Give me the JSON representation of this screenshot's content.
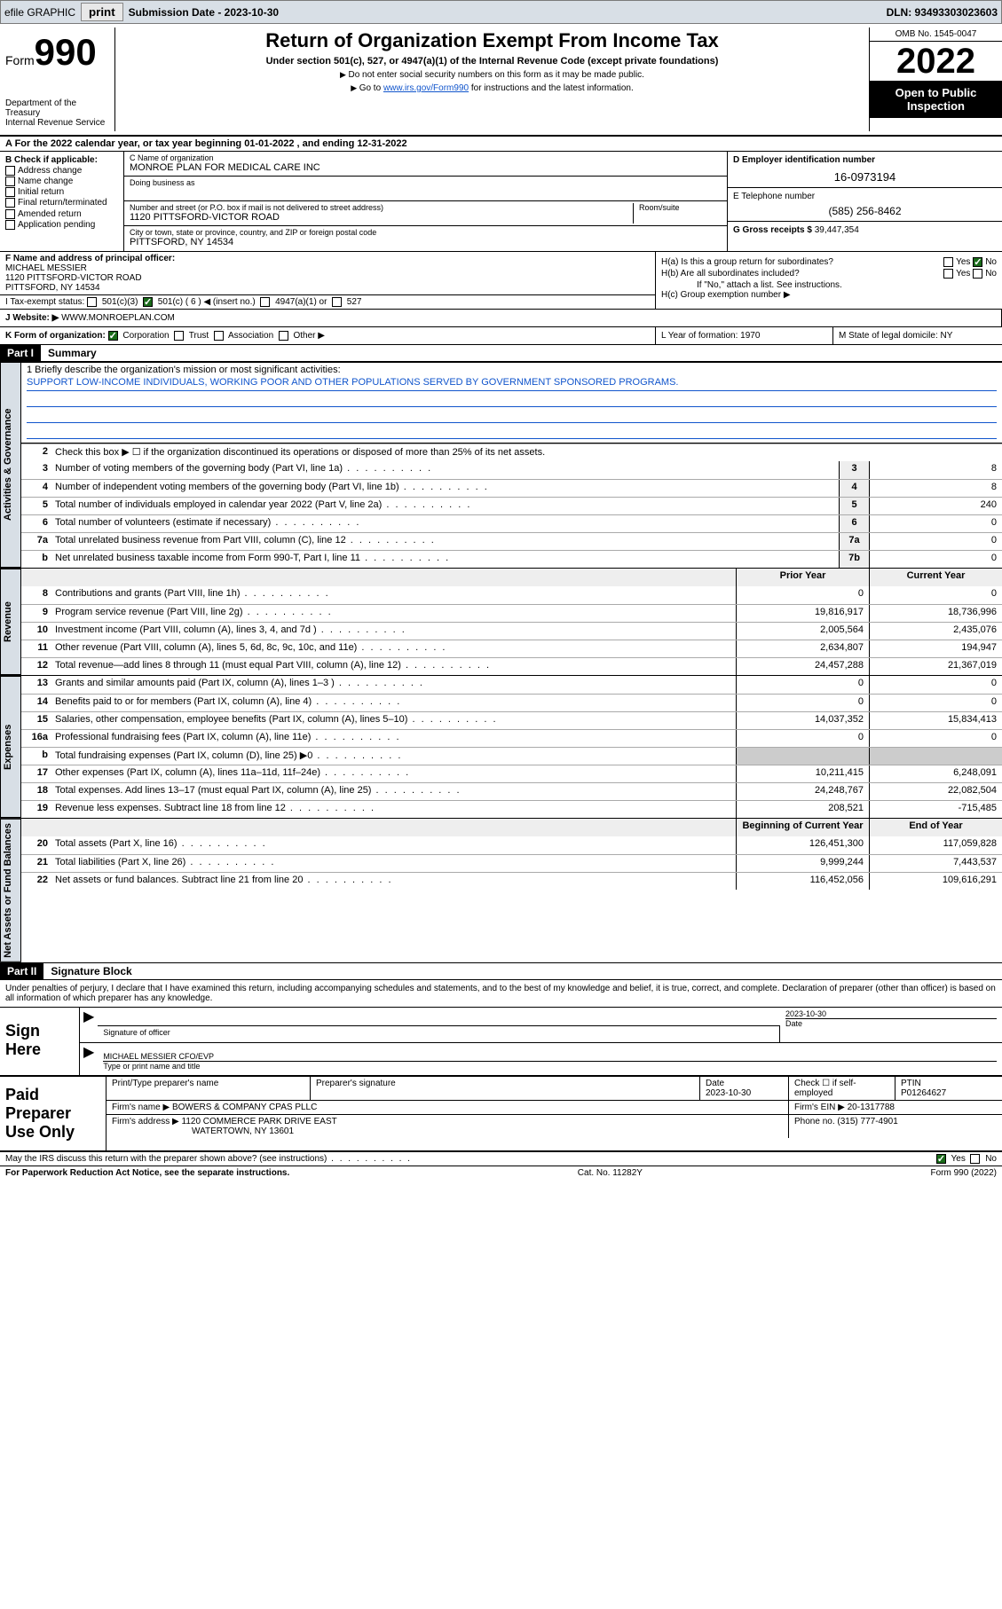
{
  "topbar": {
    "efile_label": "efile GRAPHIC",
    "print_btn": "print",
    "submission_label": "Submission Date - 2023-10-30",
    "dln_label": "DLN: 93493303023603"
  },
  "header": {
    "form_word": "Form",
    "form_num": "990",
    "dept": "Department of the Treasury",
    "irs": "Internal Revenue Service",
    "title": "Return of Organization Exempt From Income Tax",
    "subtitle": "Under section 501(c), 527, or 4947(a)(1) of the Internal Revenue Code (except private foundations)",
    "note1": "Do not enter social security numbers on this form as it may be made public.",
    "note2_pre": "Go to ",
    "note2_link": "www.irs.gov/Form990",
    "note2_post": " for instructions and the latest information.",
    "omb": "OMB No. 1545-0047",
    "year": "2022",
    "inspect": "Open to Public Inspection"
  },
  "row_a": "A For the 2022 calendar year, or tax year beginning 01-01-2022    , and ending 12-31-2022",
  "box_b": {
    "label": "B Check if applicable:",
    "opts": [
      "Address change",
      "Name change",
      "Initial return",
      "Final return/terminated",
      "Amended return",
      "Application pending"
    ]
  },
  "box_c": {
    "name_label": "C Name of organization",
    "name": "MONROE PLAN FOR MEDICAL CARE INC",
    "dba_label": "Doing business as",
    "dba": "",
    "addr_label": "Number and street (or P.O. box if mail is not delivered to street address)",
    "room_label": "Room/suite",
    "addr": "1120 PITTSFORD-VICTOR ROAD",
    "city_label": "City or town, state or province, country, and ZIP or foreign postal code",
    "city": "PITTSFORD, NY  14534"
  },
  "box_d": {
    "ein_label": "D Employer identification number",
    "ein": "16-0973194",
    "phone_label": "E Telephone number",
    "phone": "(585) 256-8462",
    "gross_label": "G Gross receipts $",
    "gross": "39,447,354"
  },
  "box_f": {
    "label": "F Name and address of principal officer:",
    "name": "MICHAEL MESSIER",
    "addr1": "1120 PITTSFORD-VICTOR ROAD",
    "addr2": "PITTSFORD, NY  14534"
  },
  "box_i": {
    "label": "I   Tax-exempt status:",
    "c3": "501(c)(3)",
    "c": "501(c) ( 6 ) ◀ (insert no.)",
    "a1": "4947(a)(1) or",
    "s527": "527"
  },
  "box_h": {
    "ha": "H(a)  Is this a group return for subordinates?",
    "hb": "H(b)  Are all subordinates included?",
    "hb_note": "If \"No,\" attach a list. See instructions.",
    "hc": "H(c)  Group exemption number ▶",
    "yes": "Yes",
    "no": "No"
  },
  "row_j": {
    "label": "J   Website: ▶",
    "val": "WWW.MONROEPLAN.COM"
  },
  "row_k": {
    "label": "K Form of organization:",
    "corp": "Corporation",
    "trust": "Trust",
    "assoc": "Association",
    "other": "Other ▶"
  },
  "row_lm": {
    "l_label": "L Year of formation: ",
    "l_val": "1970",
    "m_label": "M State of legal domicile: ",
    "m_val": "NY"
  },
  "part1": {
    "hdr": "Part I",
    "title": "Summary",
    "tab_ag": "Activities & Governance",
    "tab_rev": "Revenue",
    "tab_exp": "Expenses",
    "tab_net": "Net Assets or Fund Balances",
    "l1_label": "1  Briefly describe the organization's mission or most significant activities:",
    "l1_val": "SUPPORT LOW-INCOME INDIVIDUALS, WORKING POOR AND OTHER POPULATIONS SERVED BY GOVERNMENT SPONSORED PROGRAMS.",
    "l2": "Check this box ▶ ☐  if the organization discontinued its operations or disposed of more than 25% of its net assets.",
    "hdr_prior": "Prior Year",
    "hdr_current": "Current Year",
    "hdr_begin": "Beginning of Current Year",
    "hdr_end": "End of Year",
    "lines_ag": [
      {
        "n": "3",
        "d": "Number of voting members of the governing body (Part VI, line 1a)",
        "box": "3",
        "v": "8"
      },
      {
        "n": "4",
        "d": "Number of independent voting members of the governing body (Part VI, line 1b)",
        "box": "4",
        "v": "8"
      },
      {
        "n": "5",
        "d": "Total number of individuals employed in calendar year 2022 (Part V, line 2a)",
        "box": "5",
        "v": "240"
      },
      {
        "n": "6",
        "d": "Total number of volunteers (estimate if necessary)",
        "box": "6",
        "v": "0"
      },
      {
        "n": "7a",
        "d": "Total unrelated business revenue from Part VIII, column (C), line 12",
        "box": "7a",
        "v": "0"
      },
      {
        "n": "b",
        "d": "Net unrelated business taxable income from Form 990-T, Part I, line 11",
        "box": "7b",
        "v": "0"
      }
    ],
    "lines_rev": [
      {
        "n": "8",
        "d": "Contributions and grants (Part VIII, line 1h)",
        "p": "0",
        "c": "0"
      },
      {
        "n": "9",
        "d": "Program service revenue (Part VIII, line 2g)",
        "p": "19,816,917",
        "c": "18,736,996"
      },
      {
        "n": "10",
        "d": "Investment income (Part VIII, column (A), lines 3, 4, and 7d )",
        "p": "2,005,564",
        "c": "2,435,076"
      },
      {
        "n": "11",
        "d": "Other revenue (Part VIII, column (A), lines 5, 6d, 8c, 9c, 10c, and 11e)",
        "p": "2,634,807",
        "c": "194,947"
      },
      {
        "n": "12",
        "d": "Total revenue—add lines 8 through 11 (must equal Part VIII, column (A), line 12)",
        "p": "24,457,288",
        "c": "21,367,019"
      }
    ],
    "lines_exp": [
      {
        "n": "13",
        "d": "Grants and similar amounts paid (Part IX, column (A), lines 1–3 )",
        "p": "0",
        "c": "0"
      },
      {
        "n": "14",
        "d": "Benefits paid to or for members (Part IX, column (A), line 4)",
        "p": "0",
        "c": "0"
      },
      {
        "n": "15",
        "d": "Salaries, other compensation, employee benefits (Part IX, column (A), lines 5–10)",
        "p": "14,037,352",
        "c": "15,834,413"
      },
      {
        "n": "16a",
        "d": "Professional fundraising fees (Part IX, column (A), line 11e)",
        "p": "0",
        "c": "0"
      },
      {
        "n": "b",
        "d": "Total fundraising expenses (Part IX, column (D), line 25) ▶0",
        "p": "",
        "c": "",
        "shade": true
      },
      {
        "n": "17",
        "d": "Other expenses (Part IX, column (A), lines 11a–11d, 11f–24e)",
        "p": "10,211,415",
        "c": "6,248,091"
      },
      {
        "n": "18",
        "d": "Total expenses. Add lines 13–17 (must equal Part IX, column (A), line 25)",
        "p": "24,248,767",
        "c": "22,082,504"
      },
      {
        "n": "19",
        "d": "Revenue less expenses. Subtract line 18 from line 12",
        "p": "208,521",
        "c": "-715,485"
      }
    ],
    "lines_net": [
      {
        "n": "20",
        "d": "Total assets (Part X, line 16)",
        "p": "126,451,300",
        "c": "117,059,828"
      },
      {
        "n": "21",
        "d": "Total liabilities (Part X, line 26)",
        "p": "9,999,244",
        "c": "7,443,537"
      },
      {
        "n": "22",
        "d": "Net assets or fund balances. Subtract line 21 from line 20",
        "p": "116,452,056",
        "c": "109,616,291"
      }
    ]
  },
  "part2": {
    "hdr": "Part II",
    "title": "Signature Block",
    "decl": "Under penalties of perjury, I declare that I have examined this return, including accompanying schedules and statements, and to the best of my knowledge and belief, it is true, correct, and complete. Declaration of preparer (other than officer) is based on all information of which preparer has any knowledge."
  },
  "sign": {
    "left": "Sign Here",
    "sig_label": "Signature of officer",
    "date": "2023-10-30",
    "date_label": "Date",
    "name": "MICHAEL MESSIER CFO/EVP",
    "name_label": "Type or print name and title"
  },
  "prep": {
    "left": "Paid Preparer Use Only",
    "r1c1_label": "Print/Type preparer's name",
    "r1c2_label": "Preparer's signature",
    "r1c3_label": "Date",
    "r1c3_val": "2023-10-30",
    "r1c4_label": "Check ☐ if self-employed",
    "r1c5_label": "PTIN",
    "r1c5_val": "P01264627",
    "r2_firm_label": "Firm's name     ▶",
    "r2_firm": "BOWERS & COMPANY CPAS PLLC",
    "r2_ein_label": "Firm's EIN ▶",
    "r2_ein": "20-1317788",
    "r3_addr_label": "Firm's address ▶",
    "r3_addr1": "1120 COMMERCE PARK DRIVE EAST",
    "r3_addr2": "WATERTOWN, NY  13601",
    "r3_phone_label": "Phone no.",
    "r3_phone": "(315) 777-4901"
  },
  "footer": {
    "q": "May the IRS discuss this return with the preparer shown above? (see instructions)",
    "yes": "Yes",
    "no": "No",
    "pra": "For Paperwork Reduction Act Notice, see the separate instructions.",
    "cat": "Cat. No. 11282Y",
    "form": "Form 990 (2022)"
  }
}
